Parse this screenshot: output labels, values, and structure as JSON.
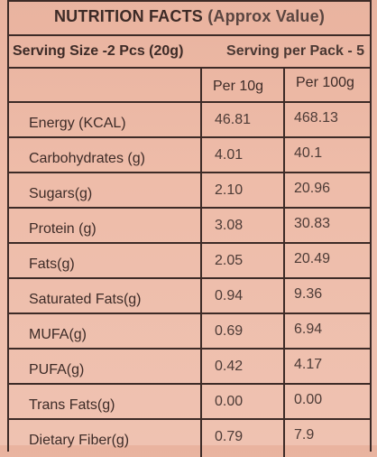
{
  "title": {
    "main": "NUTRITION FACTS",
    "note": "(Approx Value)"
  },
  "serving": {
    "size": "Serving Size -2 Pcs (20g)",
    "per_pack": "Serving per Pack - 5"
  },
  "columns": {
    "per_10g": "Per 10g",
    "per_100g": "Per 100g"
  },
  "rows": [
    {
      "nutrient": "Energy (KCAL)",
      "per_10g": "46.81",
      "per_100g": "468.13"
    },
    {
      "nutrient": "Carbohydrates (g)",
      "per_10g": "4.01",
      "per_100g": "40.1"
    },
    {
      "nutrient": "Sugars(g)",
      "per_10g": "2.10",
      "per_100g": "20.96"
    },
    {
      "nutrient": "Protein (g)",
      "per_10g": "3.08",
      "per_100g": "30.83"
    },
    {
      "nutrient": "Fats(g)",
      "per_10g": "2.05",
      "per_100g": "20.49"
    },
    {
      "nutrient": "Saturated Fats(g)",
      "per_10g": "0.94",
      "per_100g": "9.36"
    },
    {
      "nutrient": "MUFA(g)",
      "per_10g": "0.69",
      "per_100g": "6.94"
    },
    {
      "nutrient": "PUFA(g)",
      "per_10g": "0.42",
      "per_100g": "4.17"
    },
    {
      "nutrient": "Trans Fats(g)",
      "per_10g": "0.00",
      "per_100g": "0.00"
    },
    {
      "nutrient": "Dietary Fiber(g)",
      "per_10g": "0.79",
      "per_100g": "7.9"
    }
  ]
}
